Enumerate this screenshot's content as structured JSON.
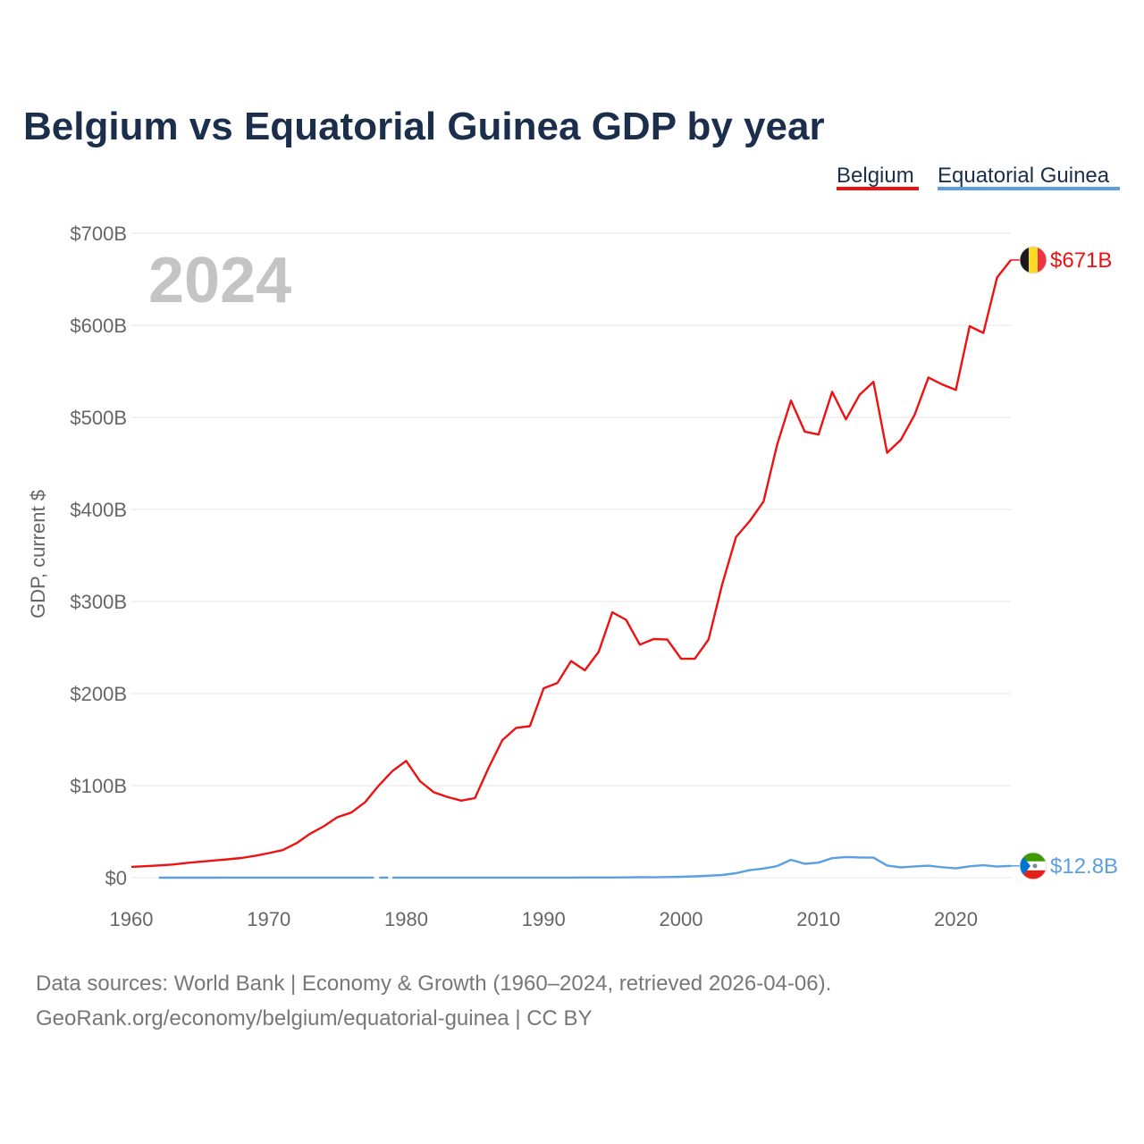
{
  "chart_data": {
    "type": "line",
    "title": "Belgium vs Equatorial Guinea GDP by year",
    "ylabel": "GDP, current $",
    "xlabel": "",
    "xlim": [
      1960,
      2024
    ],
    "ylim": [
      0,
      700
    ],
    "y_unit": "billion USD",
    "xticks": [
      1960,
      1970,
      1980,
      1990,
      2000,
      2010,
      2020
    ],
    "xtick_labels": [
      "1960",
      "1970",
      "1980",
      "1990",
      "2000",
      "2010",
      "2020"
    ],
    "yticks": [
      0,
      100,
      200,
      300,
      400,
      500,
      600,
      700
    ],
    "ytick_labels": [
      "$0",
      "$100B",
      "$200B",
      "$300B",
      "$400B",
      "$500B",
      "$600B",
      "$700B"
    ],
    "current_year": "2024",
    "grid": true,
    "legend_position": "top-right",
    "series": [
      {
        "name": "Belgium",
        "color": "#ee1111",
        "end_label": "$671B",
        "flag": "belgium-flag",
        "x": [
          1960,
          1961,
          1962,
          1963,
          1964,
          1965,
          1966,
          1967,
          1968,
          1969,
          1970,
          1971,
          1972,
          1973,
          1974,
          1975,
          1976,
          1977,
          1978,
          1979,
          1980,
          1981,
          1982,
          1983,
          1984,
          1985,
          1986,
          1987,
          1988,
          1989,
          1990,
          1991,
          1992,
          1993,
          1994,
          1995,
          1996,
          1997,
          1998,
          1999,
          2000,
          2001,
          2002,
          2003,
          2004,
          2005,
          2006,
          2007,
          2008,
          2009,
          2010,
          2011,
          2012,
          2013,
          2014,
          2015,
          2016,
          2017,
          2018,
          2019,
          2020,
          2021,
          2022,
          2023,
          2024
        ],
        "values": [
          11.7,
          12.4,
          13.3,
          14.3,
          15.9,
          17.3,
          18.6,
          19.9,
          21.4,
          23.7,
          26.7,
          29.9,
          37.3,
          47.7,
          55.8,
          65.7,
          70.7,
          81.8,
          100.1,
          115.8,
          126.8,
          104.9,
          92.8,
          87.7,
          83.7,
          86.4,
          119.5,
          149.4,
          162.7,
          164.6,
          205.7,
          211.4,
          235.3,
          225.2,
          245.2,
          288.3,
          280.1,
          253.1,
          259.2,
          258.6,
          237.9,
          237.8,
          258.7,
          318.7,
          370.0,
          387.4,
          408.5,
          470.6,
          518.3,
          484.6,
          481.4,
          527.8,
          497.9,
          524.7,
          538.6,
          461.6,
          475.7,
          502.8,
          543.3,
          535.8,
          529.8,
          599.0,
          591.7,
          651.9,
          671.0
        ]
      },
      {
        "name": "Equatorial Guinea",
        "color": "#5b9fe3",
        "end_label": "$12.8B",
        "flag": "equatorial-guinea-flag",
        "x": [
          1962,
          1963,
          1964,
          1965,
          1966,
          1967,
          1968,
          1969,
          1970,
          1971,
          1972,
          1973,
          1974,
          1975,
          1976,
          1977,
          1979,
          1980,
          1981,
          1982,
          1983,
          1984,
          1985,
          1986,
          1987,
          1988,
          1989,
          1990,
          1991,
          1992,
          1993,
          1994,
          1995,
          1996,
          1997,
          1998,
          1999,
          2000,
          2001,
          2002,
          2003,
          2004,
          2005,
          2006,
          2007,
          2008,
          2009,
          2010,
          2011,
          2012,
          2013,
          2014,
          2015,
          2016,
          2017,
          2018,
          2019,
          2020,
          2021,
          2022,
          2023,
          2024
        ],
        "values": [
          0.02,
          0.03,
          0.03,
          0.04,
          0.04,
          0.05,
          0.05,
          0.06,
          0.07,
          0.07,
          0.08,
          0.09,
          0.1,
          0.1,
          0.1,
          0.1,
          0.1,
          0.1,
          0.1,
          0.1,
          0.1,
          0.1,
          0.1,
          0.1,
          0.1,
          0.1,
          0.1,
          0.1,
          0.1,
          0.1,
          0.2,
          0.2,
          0.2,
          0.3,
          0.5,
          0.4,
          0.7,
          1.0,
          1.5,
          2.1,
          2.9,
          4.9,
          8.2,
          9.9,
          12.6,
          19.4,
          15.0,
          16.3,
          21.2,
          22.4,
          21.9,
          21.7,
          13.2,
          11.2,
          12.2,
          13.0,
          11.4,
          10.1,
          12.3,
          13.5,
          12.0,
          12.8
        ]
      }
    ],
    "gaps": [
      {
        "series": "Equatorial Guinea",
        "from": 1977,
        "to": 1979
      }
    ]
  },
  "source": {
    "line1": "Data sources: World Bank | Economy & Growth (1960–2024, retrieved 2026-04-06).",
    "line2": "GeoRank.org/economy/belgium/equatorial-guinea | CC BY"
  }
}
